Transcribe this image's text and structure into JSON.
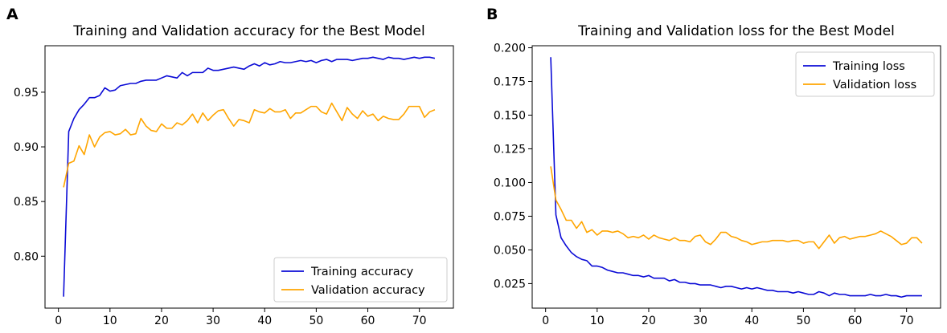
{
  "figure": {
    "panels": [
      "A",
      "B"
    ]
  },
  "colors": {
    "training": "#0b0bd6",
    "validation": "#ffa500"
  },
  "chart_data": [
    {
      "type": "line",
      "panel_label": "A",
      "title": "Training and Validation accuracy for the Best Model",
      "xlabel": "",
      "ylabel": "",
      "xlim": [
        -2.6,
        76.6
      ],
      "ylim": [
        0.7525,
        0.9925
      ],
      "xticks": [
        0,
        10,
        20,
        30,
        40,
        50,
        60,
        70
      ],
      "yticks": [
        0.8,
        0.85,
        0.9,
        0.95
      ],
      "ytick_labels": [
        "0.80",
        "0.85",
        "0.90",
        "0.95"
      ],
      "legend_position": "lower-right",
      "x": [
        1,
        2,
        3,
        4,
        5,
        6,
        7,
        8,
        9,
        10,
        11,
        12,
        13,
        14,
        15,
        16,
        17,
        18,
        19,
        20,
        21,
        22,
        23,
        24,
        25,
        26,
        27,
        28,
        29,
        30,
        31,
        32,
        33,
        34,
        35,
        36,
        37,
        38,
        39,
        40,
        41,
        42,
        43,
        44,
        45,
        46,
        47,
        48,
        49,
        50,
        51,
        52,
        53,
        54,
        55,
        56,
        57,
        58,
        59,
        60,
        61,
        62,
        63,
        64,
        65,
        66,
        67,
        68,
        69,
        70,
        71,
        72,
        73
      ],
      "series": [
        {
          "name": "Training accuracy",
          "color_key": "training",
          "values": [
            0.763,
            0.914,
            0.926,
            0.934,
            0.939,
            0.945,
            0.945,
            0.947,
            0.954,
            0.951,
            0.952,
            0.956,
            0.957,
            0.958,
            0.958,
            0.96,
            0.961,
            0.961,
            0.961,
            0.963,
            0.965,
            0.964,
            0.963,
            0.968,
            0.965,
            0.968,
            0.968,
            0.968,
            0.972,
            0.97,
            0.97,
            0.971,
            0.972,
            0.973,
            0.972,
            0.971,
            0.974,
            0.976,
            0.974,
            0.977,
            0.975,
            0.976,
            0.978,
            0.977,
            0.977,
            0.978,
            0.979,
            0.978,
            0.979,
            0.977,
            0.979,
            0.98,
            0.978,
            0.98,
            0.98,
            0.98,
            0.979,
            0.98,
            0.981,
            0.981,
            0.982,
            0.981,
            0.98,
            0.982,
            0.981,
            0.981,
            0.98,
            0.981,
            0.982,
            0.981,
            0.982,
            0.982,
            0.981
          ]
        },
        {
          "name": "Validation accuracy",
          "color_key": "validation",
          "values": [
            0.863,
            0.885,
            0.887,
            0.901,
            0.893,
            0.911,
            0.9,
            0.909,
            0.913,
            0.914,
            0.911,
            0.912,
            0.916,
            0.911,
            0.912,
            0.926,
            0.919,
            0.915,
            0.914,
            0.921,
            0.917,
            0.917,
            0.922,
            0.92,
            0.924,
            0.93,
            0.922,
            0.931,
            0.924,
            0.929,
            0.933,
            0.934,
            0.926,
            0.919,
            0.925,
            0.924,
            0.922,
            0.934,
            0.932,
            0.931,
            0.935,
            0.932,
            0.932,
            0.934,
            0.926,
            0.931,
            0.931,
            0.934,
            0.937,
            0.937,
            0.932,
            0.93,
            0.94,
            0.932,
            0.924,
            0.936,
            0.93,
            0.926,
            0.933,
            0.928,
            0.93,
            0.924,
            0.928,
            0.926,
            0.925,
            0.925,
            0.93,
            0.937,
            0.937,
            0.937,
            0.927,
            0.932,
            0.934
          ]
        }
      ]
    },
    {
      "type": "line",
      "panel_label": "B",
      "title": "Training and Validation loss for the Best Model",
      "xlabel": "",
      "ylabel": "",
      "xlim": [
        -2.6,
        76.6
      ],
      "ylim": [
        0.0068,
        0.2015
      ],
      "xticks": [
        0,
        10,
        20,
        30,
        40,
        50,
        60,
        70
      ],
      "yticks": [
        0.025,
        0.05,
        0.075,
        0.1,
        0.125,
        0.15,
        0.175,
        0.2
      ],
      "ytick_labels": [
        "0.025",
        "0.050",
        "0.075",
        "0.100",
        "0.125",
        "0.150",
        "0.175",
        "0.200"
      ],
      "legend_position": "top-right",
      "x": [
        1,
        2,
        3,
        4,
        5,
        6,
        7,
        8,
        9,
        10,
        11,
        12,
        13,
        14,
        15,
        16,
        17,
        18,
        19,
        20,
        21,
        22,
        23,
        24,
        25,
        26,
        27,
        28,
        29,
        30,
        31,
        32,
        33,
        34,
        35,
        36,
        37,
        38,
        39,
        40,
        41,
        42,
        43,
        44,
        45,
        46,
        47,
        48,
        49,
        50,
        51,
        52,
        53,
        54,
        55,
        56,
        57,
        58,
        59,
        60,
        61,
        62,
        63,
        64,
        65,
        66,
        67,
        68,
        69,
        70,
        71,
        72,
        73
      ],
      "series": [
        {
          "name": "Training loss",
          "color_key": "training",
          "values": [
            0.193,
            0.076,
            0.059,
            0.053,
            0.048,
            0.045,
            0.043,
            0.042,
            0.038,
            0.038,
            0.037,
            0.035,
            0.034,
            0.033,
            0.033,
            0.032,
            0.031,
            0.031,
            0.03,
            0.031,
            0.029,
            0.029,
            0.029,
            0.027,
            0.028,
            0.026,
            0.026,
            0.025,
            0.025,
            0.024,
            0.024,
            0.024,
            0.023,
            0.022,
            0.023,
            0.023,
            0.022,
            0.021,
            0.022,
            0.021,
            0.022,
            0.021,
            0.02,
            0.02,
            0.019,
            0.019,
            0.019,
            0.018,
            0.019,
            0.018,
            0.017,
            0.017,
            0.019,
            0.018,
            0.016,
            0.018,
            0.017,
            0.017,
            0.016,
            0.016,
            0.016,
            0.016,
            0.017,
            0.016,
            0.016,
            0.017,
            0.016,
            0.016,
            0.015,
            0.016,
            0.016,
            0.016,
            0.016
          ]
        },
        {
          "name": "Validation loss",
          "color_key": "validation",
          "values": [
            0.112,
            0.087,
            0.08,
            0.072,
            0.072,
            0.066,
            0.071,
            0.063,
            0.065,
            0.061,
            0.064,
            0.064,
            0.063,
            0.064,
            0.062,
            0.059,
            0.06,
            0.059,
            0.061,
            0.058,
            0.061,
            0.059,
            0.058,
            0.057,
            0.059,
            0.057,
            0.057,
            0.056,
            0.06,
            0.061,
            0.056,
            0.054,
            0.058,
            0.063,
            0.063,
            0.06,
            0.059,
            0.057,
            0.056,
            0.054,
            0.055,
            0.056,
            0.056,
            0.057,
            0.057,
            0.057,
            0.056,
            0.057,
            0.057,
            0.055,
            0.056,
            0.056,
            0.051,
            0.056,
            0.061,
            0.055,
            0.059,
            0.06,
            0.058,
            0.059,
            0.06,
            0.06,
            0.061,
            0.062,
            0.064,
            0.062,
            0.06,
            0.057,
            0.054,
            0.055,
            0.059,
            0.059,
            0.055
          ]
        }
      ]
    }
  ]
}
